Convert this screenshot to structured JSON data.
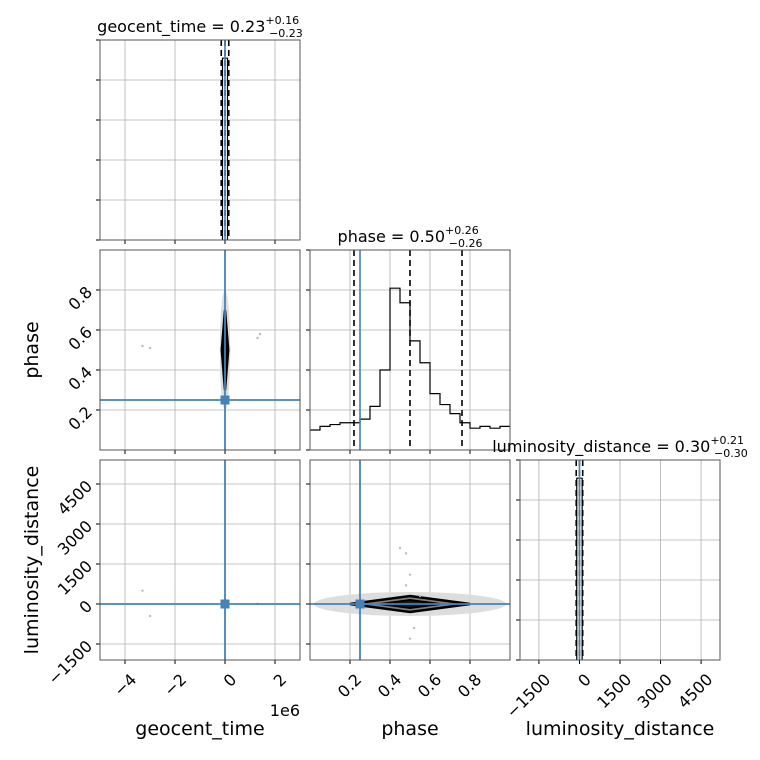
{
  "chart_data": {
    "type": "corner",
    "parameters": [
      "geocent_time",
      "phase",
      "luminosity_distance"
    ],
    "multiplier": "1e6",
    "truth": {
      "geocent_time": 0,
      "phase": 0.25,
      "luminosity_distance": 0
    },
    "truth_color": "#4682b4",
    "diagonal": [
      {
        "param": "geocent_time",
        "title": {
          "name": "geocent_time",
          "value": "0.23",
          "plus": "+0.16",
          "minus": "−0.23"
        },
        "xlim": [
          -5000000,
          3000000
        ],
        "quantiles": [
          -150000,
          0,
          150000
        ],
        "hist": [
          {
            "x0": -100000,
            "x1": 100000,
            "h": 1.0
          }
        ],
        "ymax": 1.0
      },
      {
        "param": "phase",
        "title": {
          "name": "phase",
          "value": "0.50",
          "plus": "+0.26",
          "minus": "−0.26"
        },
        "xlim": [
          0,
          1
        ],
        "quantiles": [
          0.22,
          0.5,
          0.76
        ],
        "hist": [
          {
            "x0": 0.0,
            "x1": 0.05,
            "h": 0.11
          },
          {
            "x0": 0.05,
            "x1": 0.1,
            "h": 0.13
          },
          {
            "x0": 0.1,
            "x1": 0.15,
            "h": 0.14
          },
          {
            "x0": 0.15,
            "x1": 0.2,
            "h": 0.15
          },
          {
            "x0": 0.2,
            "x1": 0.25,
            "h": 0.15
          },
          {
            "x0": 0.25,
            "x1": 0.3,
            "h": 0.17
          },
          {
            "x0": 0.3,
            "x1": 0.35,
            "h": 0.24
          },
          {
            "x0": 0.35,
            "x1": 0.4,
            "h": 0.44
          },
          {
            "x0": 0.4,
            "x1": 0.45,
            "h": 0.89
          },
          {
            "x0": 0.45,
            "x1": 0.5,
            "h": 0.81
          },
          {
            "x0": 0.5,
            "x1": 0.55,
            "h": 0.6
          },
          {
            "x0": 0.55,
            "x1": 0.6,
            "h": 0.48
          },
          {
            "x0": 0.6,
            "x1": 0.65,
            "h": 0.31
          },
          {
            "x0": 0.65,
            "x1": 0.7,
            "h": 0.25
          },
          {
            "x0": 0.7,
            "x1": 0.75,
            "h": 0.2
          },
          {
            "x0": 0.75,
            "x1": 0.8,
            "h": 0.15
          },
          {
            "x0": 0.8,
            "x1": 0.85,
            "h": 0.12
          },
          {
            "x0": 0.85,
            "x1": 0.9,
            "h": 0.13
          },
          {
            "x0": 0.9,
            "x1": 0.95,
            "h": 0.12
          },
          {
            "x0": 0.95,
            "x1": 1.0,
            "h": 0.13
          }
        ],
        "ymax": 1.0
      },
      {
        "param": "luminosity_distance",
        "title": {
          "name": "luminosity_distance",
          "value": "0.30",
          "plus": "+0.21",
          "minus": "−0.30"
        },
        "xlim": [
          -2200,
          5200
        ],
        "quantiles": [
          -120,
          0,
          120
        ],
        "hist": [
          {
            "x0": -100,
            "x1": 100,
            "h": 1.0
          }
        ],
        "ymax": 1.0
      }
    ],
    "offdiag": [
      {
        "row": 1,
        "col": 0,
        "xparam": "geocent_time",
        "yparam": "phase",
        "xlim": [
          -5000000,
          3000000
        ],
        "ylim": [
          0,
          1
        ],
        "contour": {
          "cx": 0,
          "cy": 0.5,
          "hw": 130000,
          "hh": 0.2
        },
        "points": [
          [
            -3300000,
            0.52
          ],
          [
            -3000000,
            0.51
          ],
          [
            1300000,
            0.56
          ],
          [
            1400000,
            0.58
          ]
        ]
      },
      {
        "row": 2,
        "col": 0,
        "xparam": "geocent_time",
        "yparam": "luminosity_distance",
        "xlim": [
          -5000000,
          3000000
        ],
        "ylim": [
          -2100,
          5400
        ],
        "contour": {
          "cx": 0,
          "cy": 0,
          "hw": 120000,
          "hh": 90
        },
        "points": [
          [
            -3300000,
            500
          ],
          [
            -3000000,
            -450
          ],
          [
            1300000,
            10
          ]
        ]
      },
      {
        "row": 2,
        "col": 1,
        "xparam": "phase",
        "yparam": "luminosity_distance",
        "xlim": [
          0,
          1
        ],
        "ylim": [
          -2100,
          5400
        ],
        "contour": {
          "cx": 0.5,
          "cy": 0,
          "hw": 0.3,
          "hh": 300
        },
        "points": [
          [
            0.45,
            2100
          ],
          [
            0.48,
            1900
          ],
          [
            0.5,
            1100
          ],
          [
            0.48,
            700
          ],
          [
            0.52,
            -900
          ],
          [
            0.5,
            -1300
          ],
          [
            0.55,
            300
          ]
        ]
      }
    ],
    "axes": {
      "geocent_time": {
        "label": "geocent_time",
        "ticks": [
          -4000000,
          -2000000,
          0,
          2000000
        ],
        "ticklabels": [
          "−4",
          "−2",
          "0",
          "2"
        ],
        "offset": "1e6"
      },
      "phase": {
        "label": "phase",
        "ticks": [
          0.2,
          0.4,
          0.6,
          0.8
        ],
        "ticklabels": [
          "0.2",
          "0.4",
          "0.6",
          "0.8"
        ]
      },
      "luminosity_distance": {
        "label": "luminosity_distance",
        "ticks": [
          -1500,
          0,
          1500,
          3000,
          4500
        ],
        "ticklabels": [
          "−1500",
          "0",
          "1500",
          "3000",
          "4500"
        ]
      }
    }
  }
}
